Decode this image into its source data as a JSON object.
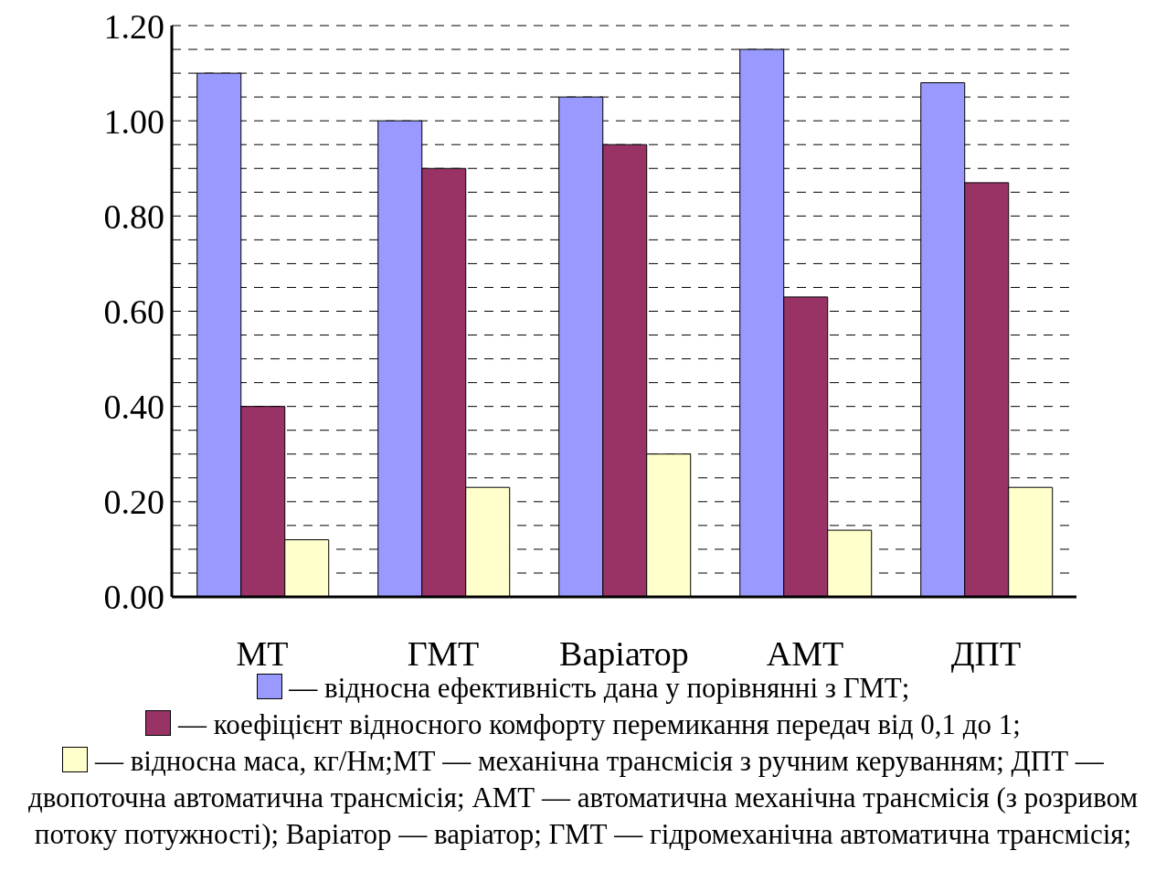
{
  "chart_data": {
    "type": "bar",
    "categories": [
      "МТ",
      "ГМТ",
      "Варіатор",
      "АМТ",
      "ДПТ"
    ],
    "series": [
      {
        "name": "— відносна ефективність дана у порівнянні з ГМТ;",
        "color": "#9999ff",
        "values": [
          1.1,
          1.0,
          1.05,
          1.15,
          1.08
        ]
      },
      {
        "name": "— коефіцієнт відносного комфорту перемикання передач від 0,1 до 1;",
        "color": "#993366",
        "values": [
          0.4,
          0.9,
          0.95,
          0.63,
          0.87
        ]
      },
      {
        "name": "— відносна маса, кг/Нм;",
        "color": "#ffffcc",
        "values": [
          0.12,
          0.23,
          0.3,
          0.14,
          0.23
        ]
      }
    ],
    "ylim": [
      0,
      1.2
    ],
    "yticks": [
      {
        "value": 0,
        "label": "0.00"
      },
      {
        "value": 0.05,
        "label": null
      },
      {
        "value": 0.1,
        "label": null
      },
      {
        "value": 0.15,
        "label": null
      },
      {
        "value": 0.2,
        "label": "0.20"
      },
      {
        "value": 0.25,
        "label": null
      },
      {
        "value": 0.3,
        "label": null
      },
      {
        "value": 0.35,
        "label": null
      },
      {
        "value": 0.4,
        "label": "0.40"
      },
      {
        "value": 0.45,
        "label": null
      },
      {
        "value": 0.5,
        "label": null
      },
      {
        "value": 0.55,
        "label": null
      },
      {
        "value": 0.6,
        "label": "0.60"
      },
      {
        "value": 0.65,
        "label": null
      },
      {
        "value": 0.7,
        "label": null
      },
      {
        "value": 0.75,
        "label": null
      },
      {
        "value": 0.8,
        "label": "0.80"
      },
      {
        "value": 0.85,
        "label": null
      },
      {
        "value": 0.9,
        "label": null
      },
      {
        "value": 0.95,
        "label": null
      },
      {
        "value": 1.0,
        "label": "1.00"
      },
      {
        "value": 1.05,
        "label": null
      },
      {
        "value": 1.1,
        "label": null
      },
      {
        "value": 1.15,
        "label": null
      },
      {
        "value": 1.2,
        "label": "1.20"
      }
    ],
    "grid": "y",
    "legend": "bottom",
    "annotations": [
      "МТ — механічна трансмісія з ручним керуванням; ДПТ — двопоточна автоматична трансмісія; АМТ — автоматична механічна трансмісія (з розривом потоку потужності); Варіатор — варіатор; ГМТ — гідромеханічна автоматична трансмісія;"
    ]
  }
}
